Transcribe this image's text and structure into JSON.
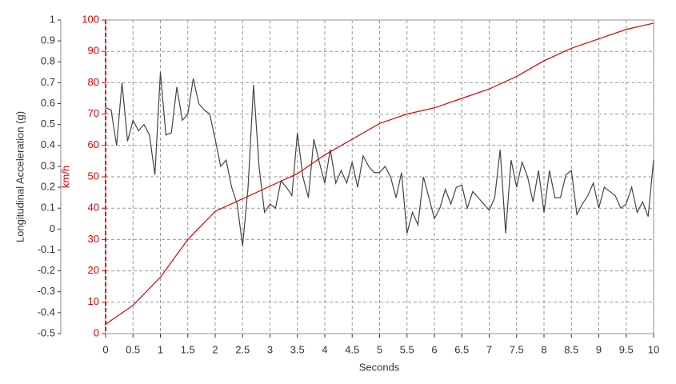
{
  "chart_data": {
    "type": "line",
    "xlabel": "Seconds",
    "ylabel": "Longitudinal Acceleration (g)",
    "y2label": "km/h",
    "xlim": [
      0,
      10
    ],
    "xticks": [
      0,
      0.5,
      1,
      1.5,
      2,
      2.5,
      3,
      3.5,
      4,
      4.5,
      5,
      5.5,
      6,
      6.5,
      7,
      7.5,
      8,
      8.5,
      9,
      9.5,
      10
    ],
    "ylim": [
      -0.5,
      1
    ],
    "yticks": [
      -0.5,
      -0.4,
      -0.3,
      -0.2,
      -0.1,
      0,
      0.1,
      0.2,
      0.3,
      0.4,
      0.5,
      0.6,
      0.7,
      0.8,
      0.9,
      1
    ],
    "y2lim": [
      0,
      100
    ],
    "y2ticks": [
      0,
      10,
      20,
      30,
      40,
      50,
      60,
      70,
      80,
      90,
      100
    ],
    "y2color": "#e00000",
    "grid": true,
    "series": [
      {
        "color": "#444444",
        "axis": "y",
        "x": [
          0,
          0.1,
          0.2,
          0.3,
          0.4,
          0.5,
          0.6,
          0.7,
          0.8,
          0.9,
          1,
          1.1,
          1.2,
          1.3,
          1.4,
          1.5,
          1.6,
          1.7,
          1.8,
          1.9,
          2,
          2.1,
          2.2,
          2.3,
          2.4,
          2.5,
          2.6,
          2.7,
          2.8,
          2.9,
          3,
          3.1,
          3.2,
          3.3,
          3.4,
          3.5,
          3.6,
          3.7,
          3.8,
          3.9,
          4,
          4.1,
          4.2,
          4.3,
          4.4,
          4.5,
          4.6,
          4.7,
          4.8,
          4.9,
          5,
          5.1,
          5.2,
          5.3,
          5.4,
          5.5,
          5.6,
          5.7,
          5.8,
          5.9,
          6,
          6.1,
          6.2,
          6.3,
          6.4,
          6.5,
          6.6,
          6.7,
          6.8,
          6.9,
          7,
          7.1,
          7.2,
          7.3,
          7.4,
          7.5,
          7.6,
          7.7,
          7.8,
          7.9,
          8,
          8.1,
          8.2,
          8.3,
          8.4,
          8.5,
          8.6,
          8.7,
          8.8,
          8.9,
          9,
          9.1,
          9.2,
          9.3,
          9.4,
          9.5,
          9.6,
          9.7,
          9.8,
          9.9,
          10
        ],
        "values": [
          0.58,
          0.57,
          0.4,
          0.7,
          0.42,
          0.52,
          0.47,
          0.5,
          0.45,
          0.26,
          0.75,
          0.45,
          0.46,
          0.68,
          0.52,
          0.55,
          0.72,
          0.6,
          0.57,
          0.55,
          0.43,
          0.3,
          0.33,
          0.2,
          0.12,
          -0.08,
          0.2,
          0.69,
          0.3,
          0.08,
          0.12,
          0.1,
          0.23,
          0.2,
          0.16,
          0.46,
          0.25,
          0.15,
          0.43,
          0.32,
          0.22,
          0.38,
          0.22,
          0.28,
          0.22,
          0.32,
          0.2,
          0.35,
          0.3,
          0.27,
          0.27,
          0.3,
          0.25,
          0.15,
          0.27,
          -0.02,
          0.08,
          0.02,
          0.25,
          0.15,
          0.05,
          0.1,
          0.19,
          0.12,
          0.2,
          0.21,
          0.1,
          0.18,
          0.15,
          0.12,
          0.09,
          0.15,
          0.38,
          -0.02,
          0.33,
          0.2,
          0.32,
          0.25,
          0.13,
          0.28,
          0.08,
          0.28,
          0.15,
          0.15,
          0.26,
          0.28,
          0.07,
          0.12,
          0.16,
          0.22,
          0.1,
          0.2,
          0.18,
          0.16,
          0.1,
          0.12,
          0.2,
          0.08,
          0.13,
          0.06,
          0.33
        ]
      },
      {
        "color": "#e00000",
        "axis": "y2",
        "x": [
          0,
          0.5,
          1,
          1.5,
          2,
          2.5,
          3,
          3.5,
          4,
          4.5,
          5,
          5.5,
          6,
          6.5,
          7,
          7.5,
          8,
          8.5,
          9,
          9.5,
          10
        ],
        "values": [
          3,
          9,
          18,
          30,
          39,
          43,
          47,
          51,
          57,
          62,
          67,
          70,
          72,
          75,
          78,
          82,
          87,
          91,
          94,
          97,
          99
        ]
      }
    ]
  }
}
